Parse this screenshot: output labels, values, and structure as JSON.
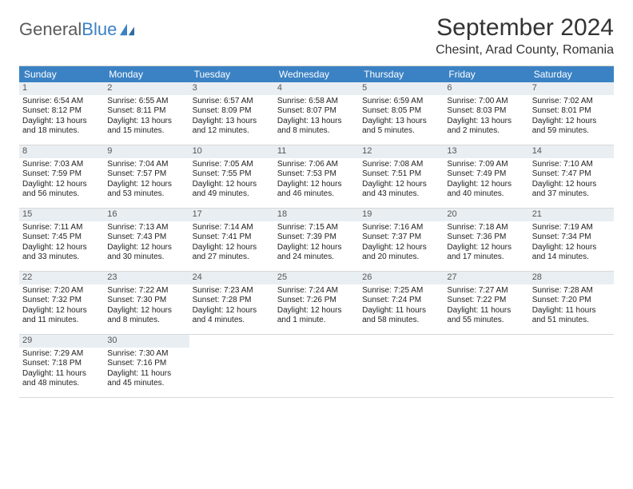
{
  "brand": {
    "name1": "General",
    "name2": "Blue"
  },
  "title": "September 2024",
  "location": "Chesint, Arad County, Romania",
  "colors": {
    "header_bg": "#3b82c4",
    "daynum_bg": "#e9eef2",
    "border": "#d8d8d8",
    "text": "#222222"
  },
  "layout": {
    "columns": 7,
    "rows": 5
  },
  "daysOfWeek": [
    "Sunday",
    "Monday",
    "Tuesday",
    "Wednesday",
    "Thursday",
    "Friday",
    "Saturday"
  ],
  "days": [
    {
      "n": "1",
      "sunrise": "6:54 AM",
      "sunset": "8:12 PM",
      "daylight": "13 hours and 18 minutes."
    },
    {
      "n": "2",
      "sunrise": "6:55 AM",
      "sunset": "8:11 PM",
      "daylight": "13 hours and 15 minutes."
    },
    {
      "n": "3",
      "sunrise": "6:57 AM",
      "sunset": "8:09 PM",
      "daylight": "13 hours and 12 minutes."
    },
    {
      "n": "4",
      "sunrise": "6:58 AM",
      "sunset": "8:07 PM",
      "daylight": "13 hours and 8 minutes."
    },
    {
      "n": "5",
      "sunrise": "6:59 AM",
      "sunset": "8:05 PM",
      "daylight": "13 hours and 5 minutes."
    },
    {
      "n": "6",
      "sunrise": "7:00 AM",
      "sunset": "8:03 PM",
      "daylight": "13 hours and 2 minutes."
    },
    {
      "n": "7",
      "sunrise": "7:02 AM",
      "sunset": "8:01 PM",
      "daylight": "12 hours and 59 minutes."
    },
    {
      "n": "8",
      "sunrise": "7:03 AM",
      "sunset": "7:59 PM",
      "daylight": "12 hours and 56 minutes."
    },
    {
      "n": "9",
      "sunrise": "7:04 AM",
      "sunset": "7:57 PM",
      "daylight": "12 hours and 53 minutes."
    },
    {
      "n": "10",
      "sunrise": "7:05 AM",
      "sunset": "7:55 PM",
      "daylight": "12 hours and 49 minutes."
    },
    {
      "n": "11",
      "sunrise": "7:06 AM",
      "sunset": "7:53 PM",
      "daylight": "12 hours and 46 minutes."
    },
    {
      "n": "12",
      "sunrise": "7:08 AM",
      "sunset": "7:51 PM",
      "daylight": "12 hours and 43 minutes."
    },
    {
      "n": "13",
      "sunrise": "7:09 AM",
      "sunset": "7:49 PM",
      "daylight": "12 hours and 40 minutes."
    },
    {
      "n": "14",
      "sunrise": "7:10 AM",
      "sunset": "7:47 PM",
      "daylight": "12 hours and 37 minutes."
    },
    {
      "n": "15",
      "sunrise": "7:11 AM",
      "sunset": "7:45 PM",
      "daylight": "12 hours and 33 minutes."
    },
    {
      "n": "16",
      "sunrise": "7:13 AM",
      "sunset": "7:43 PM",
      "daylight": "12 hours and 30 minutes."
    },
    {
      "n": "17",
      "sunrise": "7:14 AM",
      "sunset": "7:41 PM",
      "daylight": "12 hours and 27 minutes."
    },
    {
      "n": "18",
      "sunrise": "7:15 AM",
      "sunset": "7:39 PM",
      "daylight": "12 hours and 24 minutes."
    },
    {
      "n": "19",
      "sunrise": "7:16 AM",
      "sunset": "7:37 PM",
      "daylight": "12 hours and 20 minutes."
    },
    {
      "n": "20",
      "sunrise": "7:18 AM",
      "sunset": "7:36 PM",
      "daylight": "12 hours and 17 minutes."
    },
    {
      "n": "21",
      "sunrise": "7:19 AM",
      "sunset": "7:34 PM",
      "daylight": "12 hours and 14 minutes."
    },
    {
      "n": "22",
      "sunrise": "7:20 AM",
      "sunset": "7:32 PM",
      "daylight": "12 hours and 11 minutes."
    },
    {
      "n": "23",
      "sunrise": "7:22 AM",
      "sunset": "7:30 PM",
      "daylight": "12 hours and 8 minutes."
    },
    {
      "n": "24",
      "sunrise": "7:23 AM",
      "sunset": "7:28 PM",
      "daylight": "12 hours and 4 minutes."
    },
    {
      "n": "25",
      "sunrise": "7:24 AM",
      "sunset": "7:26 PM",
      "daylight": "12 hours and 1 minute."
    },
    {
      "n": "26",
      "sunrise": "7:25 AM",
      "sunset": "7:24 PM",
      "daylight": "11 hours and 58 minutes."
    },
    {
      "n": "27",
      "sunrise": "7:27 AM",
      "sunset": "7:22 PM",
      "daylight": "11 hours and 55 minutes."
    },
    {
      "n": "28",
      "sunrise": "7:28 AM",
      "sunset": "7:20 PM",
      "daylight": "11 hours and 51 minutes."
    },
    {
      "n": "29",
      "sunrise": "7:29 AM",
      "sunset": "7:18 PM",
      "daylight": "11 hours and 48 minutes."
    },
    {
      "n": "30",
      "sunrise": "7:30 AM",
      "sunset": "7:16 PM",
      "daylight": "11 hours and 45 minutes."
    }
  ],
  "labels": {
    "sunrise": "Sunrise:",
    "sunset": "Sunset:",
    "daylight": "Daylight:"
  }
}
